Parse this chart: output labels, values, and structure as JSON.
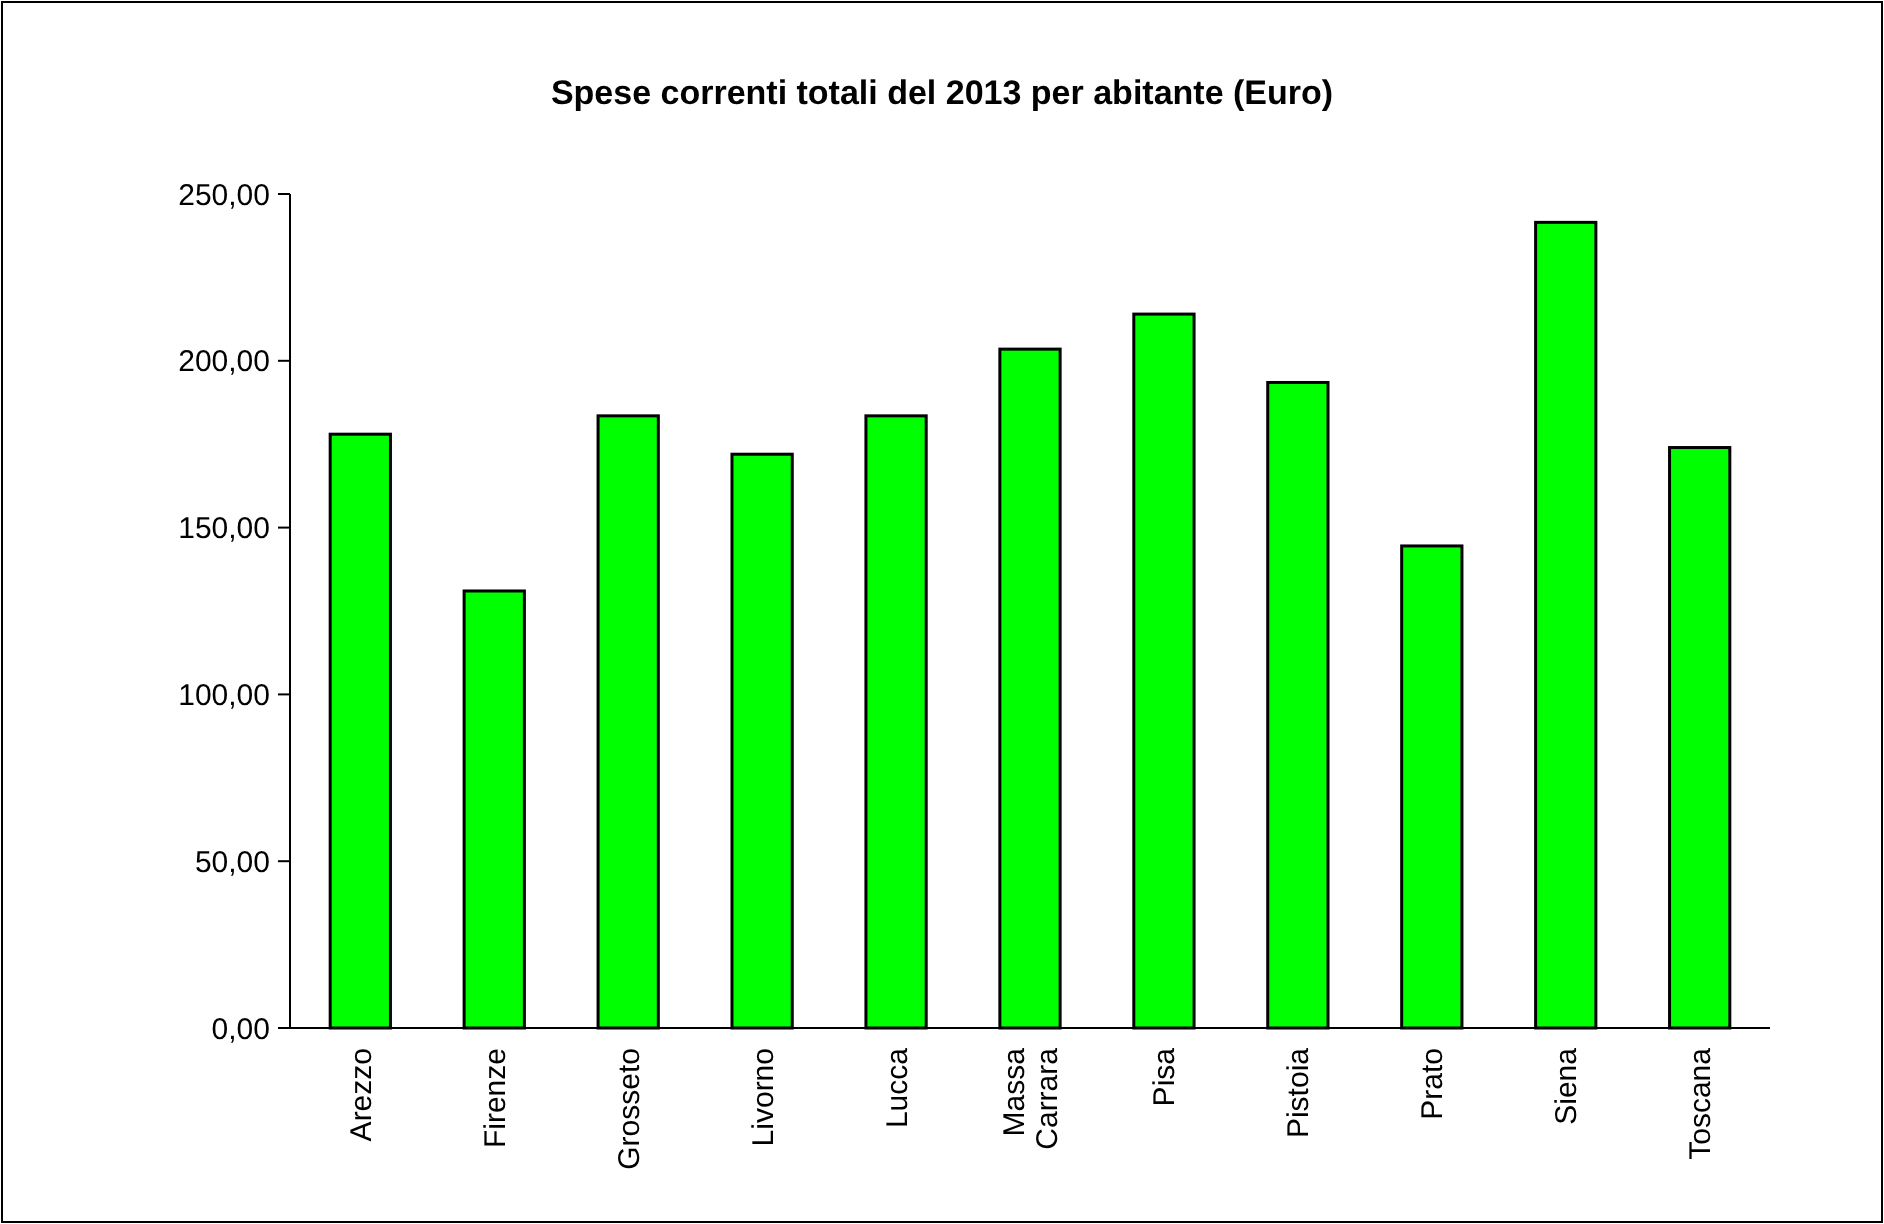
{
  "chart_data": {
    "type": "bar",
    "title": "Spese correnti totali del 2013 per abitante (Euro)",
    "categories": [
      "Arezzo",
      "Firenze",
      "Grosseto",
      "Livorno",
      "Lucca",
      "Massa Carrara",
      "Pisa",
      "Pistoia",
      "Prato",
      "Siena",
      "Toscana"
    ],
    "values": [
      178,
      131,
      183.5,
      172,
      183.5,
      203.5,
      214,
      193.5,
      144.5,
      241.5,
      174
    ],
    "color": "#00ff00",
    "ylim": [
      0,
      250
    ],
    "yticks": [
      {
        "value": 0,
        "label": "0,00"
      },
      {
        "value": 50,
        "label": "50,00"
      },
      {
        "value": 100,
        "label": "100,00"
      },
      {
        "value": 150,
        "label": "150,00"
      },
      {
        "value": 200,
        "label": "200,00"
      },
      {
        "value": 250,
        "label": "250,00"
      }
    ],
    "grid": false
  }
}
